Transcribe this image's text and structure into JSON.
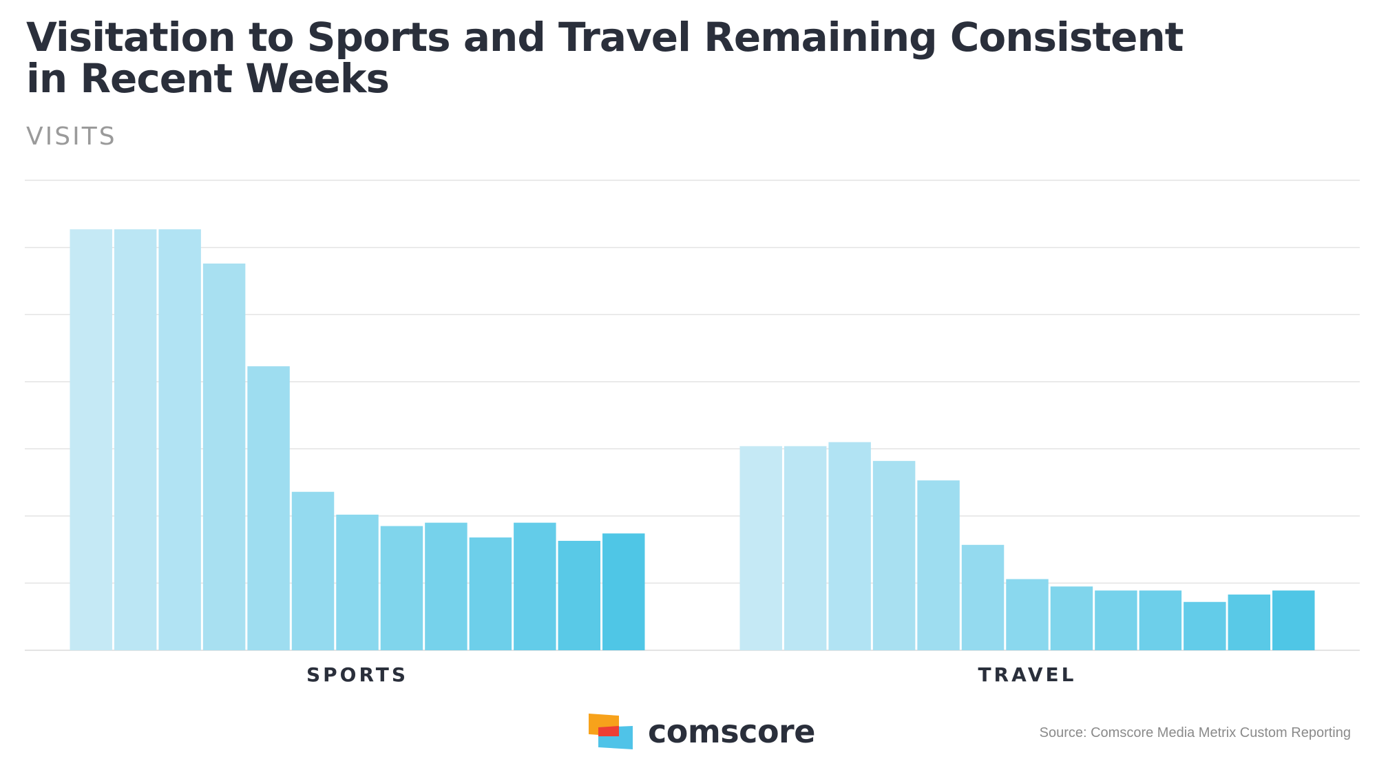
{
  "title_lines": [
    "Visitation to Sports and Travel Remaining Consistent",
    "in Recent Weeks"
  ],
  "subtitle": "VISITS",
  "brand": "comscore",
  "source": "Source: Comscore Media Metrix Custom Reporting",
  "colors": {
    "bar_lightest": "#c5e9f5",
    "bar_darkest": "#4fc6e6",
    "grid": "#e3e3e3",
    "label": "#2a2f3b",
    "logo_orange": "#f7a21b",
    "logo_red": "#ee3f34",
    "logo_blue": "#4fc3e8"
  },
  "chart_data": {
    "type": "bar",
    "categories": [
      "SPORTS",
      "TRAVEL"
    ],
    "ylim": [
      0,
      7
    ],
    "grid": true,
    "series_per_group": 13,
    "groups": [
      {
        "name": "SPORTS",
        "values": [
          6.27,
          6.27,
          6.27,
          5.76,
          4.23,
          2.36,
          2.02,
          1.85,
          1.9,
          1.68,
          1.9,
          1.63,
          1.74
        ]
      },
      {
        "name": "TRAVEL",
        "values": [
          3.04,
          3.04,
          3.1,
          2.82,
          2.53,
          1.57,
          1.06,
          0.95,
          0.89,
          0.89,
          0.72,
          0.83,
          0.89
        ]
      }
    ]
  }
}
